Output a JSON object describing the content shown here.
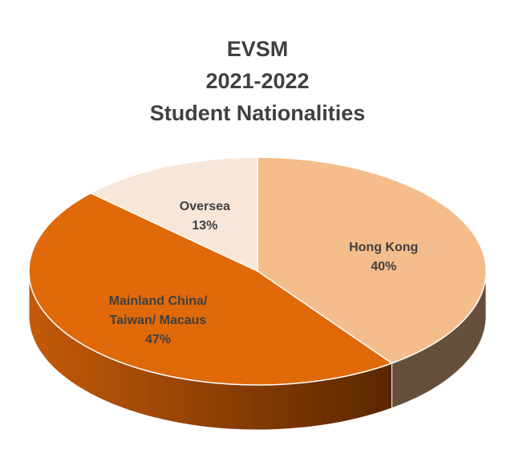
{
  "chart_data": {
    "type": "pie",
    "title": [
      "EVSM",
      "2021-2022",
      "Student Nationalities"
    ],
    "categories": [
      "Hong Kong",
      "Mainland China/ Taiwan/ Macaus",
      "Oversea"
    ],
    "values": [
      40,
      47,
      13
    ],
    "value_labels": [
      "40%",
      "47%",
      "13%"
    ],
    "colors": [
      "#f5bd8c",
      "#e0690a",
      "#f8e6d8"
    ]
  }
}
